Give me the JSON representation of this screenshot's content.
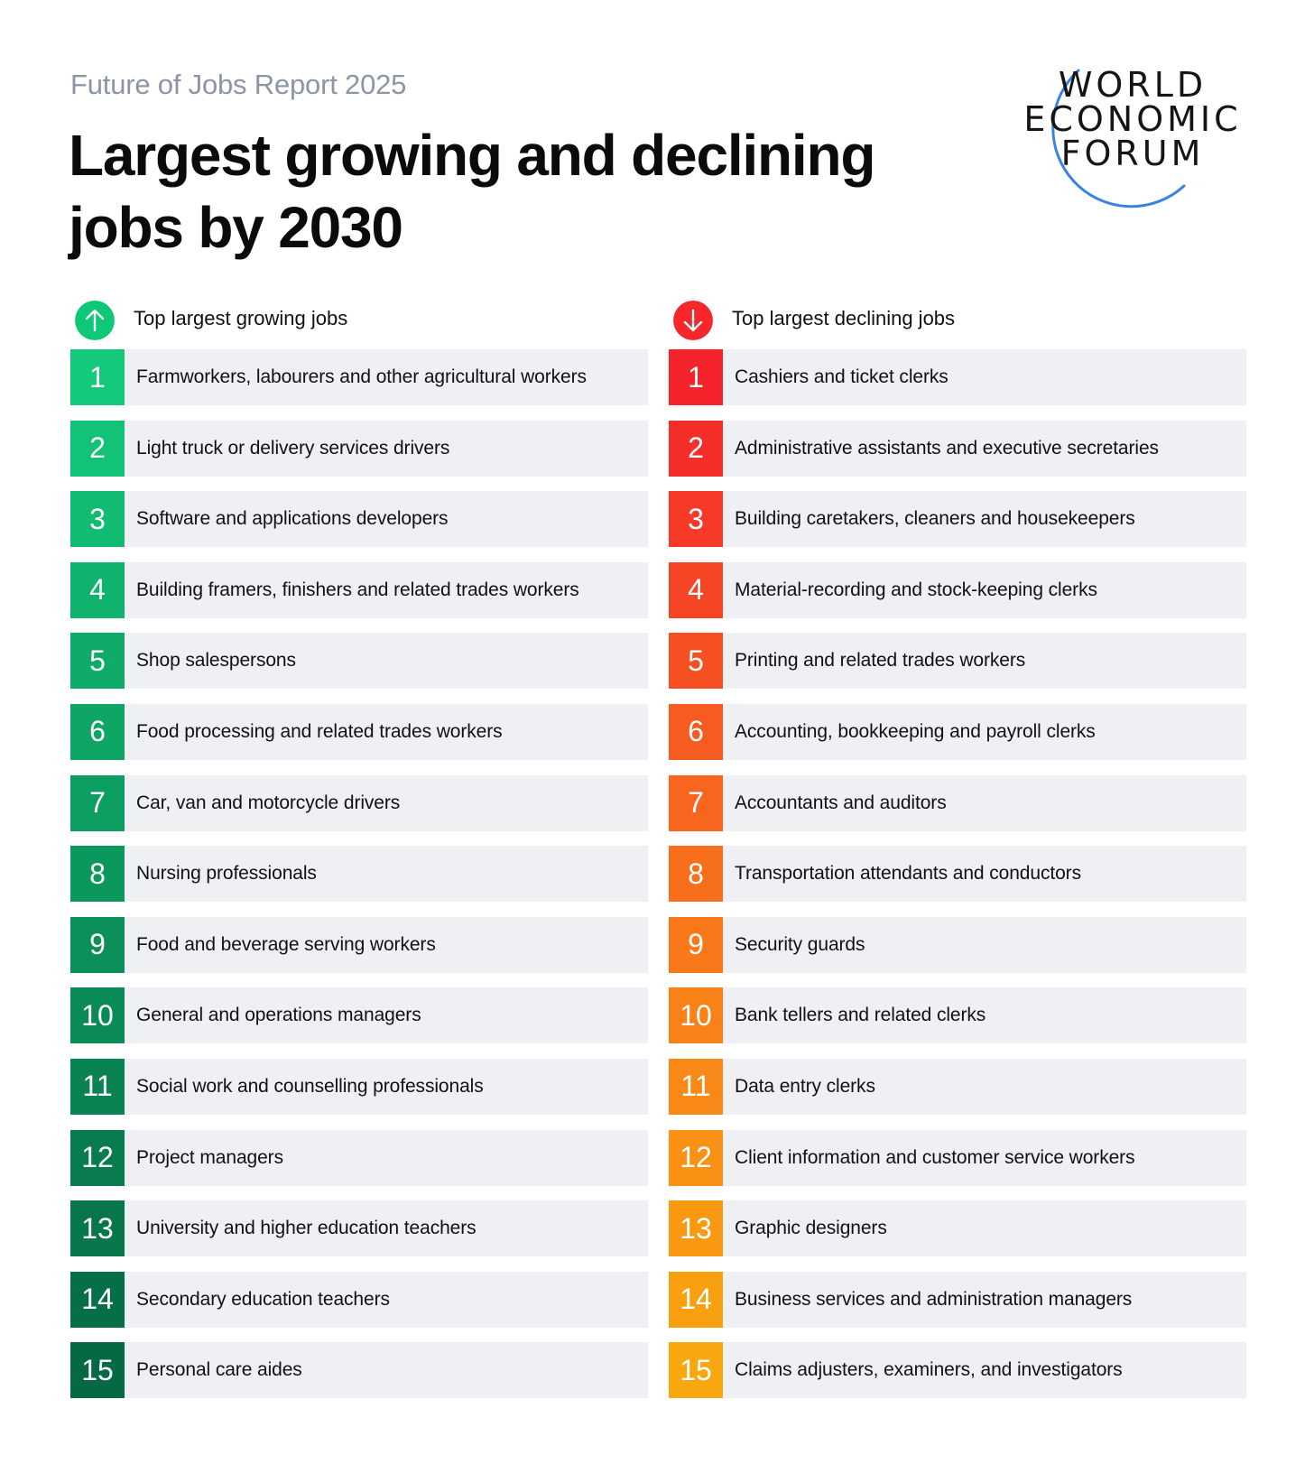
{
  "header": {
    "kicker": "Future of Jobs Report 2025",
    "title": "Largest growing and declining jobs by 2030"
  },
  "logo": {
    "lines": [
      "WORLD",
      "ECONOMIC",
      "FORUM"
    ],
    "arc_color": "#3b82e0"
  },
  "growing": {
    "heading": "Top largest growing jobs",
    "icon": "arrow-up-icon",
    "icon_color": "#0fc877",
    "items": [
      {
        "rank": "1",
        "label": "Farmworkers, labourers and other agricultural workers",
        "color": "#14c97a"
      },
      {
        "rank": "2",
        "label": "Light truck or delivery services drivers",
        "color": "#12c276"
      },
      {
        "rank": "3",
        "label": "Software and applications developers",
        "color": "#11bb72"
      },
      {
        "rank": "4",
        "label": "Building framers, finishers and related trades workers",
        "color": "#10b36d"
      },
      {
        "rank": "5",
        "label": "Shop salespersons",
        "color": "#0fac69"
      },
      {
        "rank": "6",
        "label": "Food processing and related trades workers",
        "color": "#0ea565"
      },
      {
        "rank": "7",
        "label": "Car, van and motorcycle drivers",
        "color": "#0d9e61"
      },
      {
        "rank": "8",
        "label": "Nursing professionals",
        "color": "#0c975d"
      },
      {
        "rank": "9",
        "label": "Food and beverage serving workers",
        "color": "#0b9059"
      },
      {
        "rank": "10",
        "label": "General and operations managers",
        "color": "#0a8a56"
      },
      {
        "rank": "11",
        "label": "Social work and counselling professionals",
        "color": "#098352"
      },
      {
        "rank": "12",
        "label": "Project managers",
        "color": "#087c4e"
      },
      {
        "rank": "13",
        "label": "University and higher education teachers",
        "color": "#07764b"
      },
      {
        "rank": "14",
        "label": "Secondary education teachers",
        "color": "#066f47"
      },
      {
        "rank": "15",
        "label": "Personal care aides",
        "color": "#056944"
      }
    ]
  },
  "declining": {
    "heading": "Top largest declining jobs",
    "icon": "arrow-down-icon",
    "icon_color": "#f5262c",
    "items": [
      {
        "rank": "1",
        "label": "Cashiers and ticket clerks",
        "color": "#f5232b"
      },
      {
        "rank": "2",
        "label": "Administrative assistants and executive secretaries",
        "color": "#f52e29"
      },
      {
        "rank": "3",
        "label": "Building caretakers, cleaners and housekeepers",
        "color": "#f63a27"
      },
      {
        "rank": "4",
        "label": "Material-recording and stock-keeping clerks",
        "color": "#f64524"
      },
      {
        "rank": "5",
        "label": "Printing and related trades workers",
        "color": "#f65022"
      },
      {
        "rank": "6",
        "label": "Accounting, bookkeeping and payroll clerks",
        "color": "#f75b20"
      },
      {
        "rank": "7",
        "label": "Accountants and auditors",
        "color": "#f7651e"
      },
      {
        "rank": "8",
        "label": "Transportation attendants and conductors",
        "color": "#f76f1c"
      },
      {
        "rank": "9",
        "label": "Security guards",
        "color": "#f8781a"
      },
      {
        "rank": "10",
        "label": "Bank tellers and related clerks",
        "color": "#f88118"
      },
      {
        "rank": "11",
        "label": "Data entry clerks",
        "color": "#f88916"
      },
      {
        "rank": "12",
        "label": "Client information and customer service workers",
        "color": "#f99114"
      },
      {
        "rank": "13",
        "label": "Graphic designers",
        "color": "#f99912"
      },
      {
        "rank": "14",
        "label": "Business services and administration managers",
        "color": "#f9a010"
      },
      {
        "rank": "15",
        "label": "Claims adjusters, examiners, and investigators",
        "color": "#f9a70e"
      }
    ]
  }
}
